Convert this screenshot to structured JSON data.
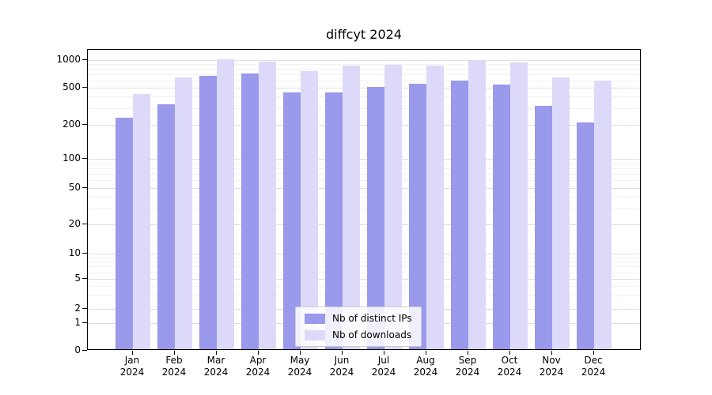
{
  "chart_data": {
    "type": "bar",
    "title": "diffcyt 2024",
    "categories": [
      "Jan 2024",
      "Feb 2024",
      "Mar 2024",
      "Apr 2024",
      "May 2024",
      "Jun 2024",
      "Jul 2024",
      "Aug 2024",
      "Sep 2024",
      "Oct 2024",
      "Nov 2024",
      "Dec 2024"
    ],
    "series": [
      {
        "name": "Nb of distinct IPs",
        "color": "#9a99ec",
        "values": [
          230,
          320,
          650,
          680,
          430,
          430,
          490,
          530,
          570,
          520,
          310,
          205
        ]
      },
      {
        "name": "Nb of downloads",
        "color": "#dcdaf8",
        "values": [
          410,
          620,
          980,
          930,
          730,
          830,
          860,
          840,
          950,
          910,
          620,
          575
        ]
      }
    ],
    "yticks": [
      0,
      1,
      2,
      5,
      10,
      20,
      50,
      100,
      200,
      500,
      1000
    ],
    "yscale": "symlog",
    "ylim": [
      0,
      1150
    ],
    "grid": true,
    "legend_position": "lower center",
    "colors": {
      "background": "#ffffff",
      "gridline": "#dedede",
      "axis": "#000000"
    }
  }
}
